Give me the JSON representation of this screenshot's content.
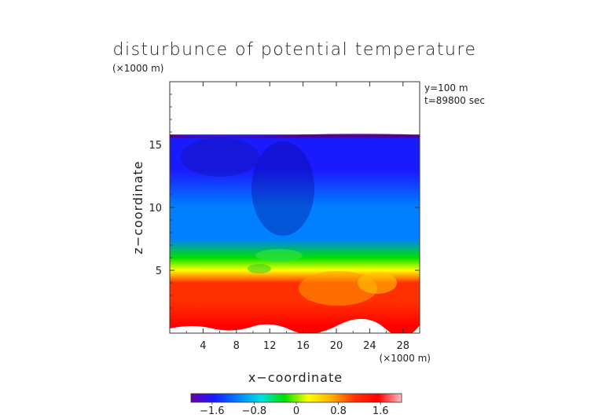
{
  "chart_data": {
    "type": "heatmap",
    "title": "disturbunce of potential temperature",
    "top_unit": "(×1000 m)",
    "xlabel": "x−coordinate",
    "ylabel": "z−coordinate",
    "x_unit": "(×1000 m)",
    "annotations": [
      "y=100 m",
      "t=89800 sec"
    ],
    "x_ticks": [
      4,
      8,
      12,
      16,
      20,
      24,
      28
    ],
    "x_tick_labels": [
      "4",
      "8",
      "12",
      "16",
      "20",
      "24",
      "28"
    ],
    "y_ticks": [
      5,
      10,
      15
    ],
    "y_tick_labels": [
      "5",
      "10",
      "15"
    ],
    "xlim": [
      0,
      30
    ],
    "ylim": [
      0,
      20
    ],
    "grid": false,
    "data_top": 15.8,
    "colorbar": {
      "range": [
        -2.0,
        2.0
      ],
      "ticks": [
        -1.6,
        -0.8,
        0,
        0.8,
        1.6
      ],
      "tick_labels": [
        "−1.6",
        "−0.8",
        "0",
        "0.8",
        "1.6"
      ],
      "colors": [
        "#6a00a8",
        "#1a1aff",
        "#0080ff",
        "#00e0e0",
        "#00e000",
        "#ffff00",
        "#ffb000",
        "#ff3000",
        "#ff0000",
        "#ffc0c8"
      ]
    },
    "vertical_profile": [
      {
        "z": 0.5,
        "value": 1.7
      },
      {
        "z": 2.5,
        "value": 1.3
      },
      {
        "z": 4.0,
        "value": 0.9
      },
      {
        "z": 5.0,
        "value": 0.4
      },
      {
        "z": 6.0,
        "value": -0.2
      },
      {
        "z": 7.5,
        "value": -1.0
      },
      {
        "z": 10.0,
        "value": -1.3
      },
      {
        "z": 13.0,
        "value": -1.5
      },
      {
        "z": 15.5,
        "value": -1.7
      }
    ]
  }
}
